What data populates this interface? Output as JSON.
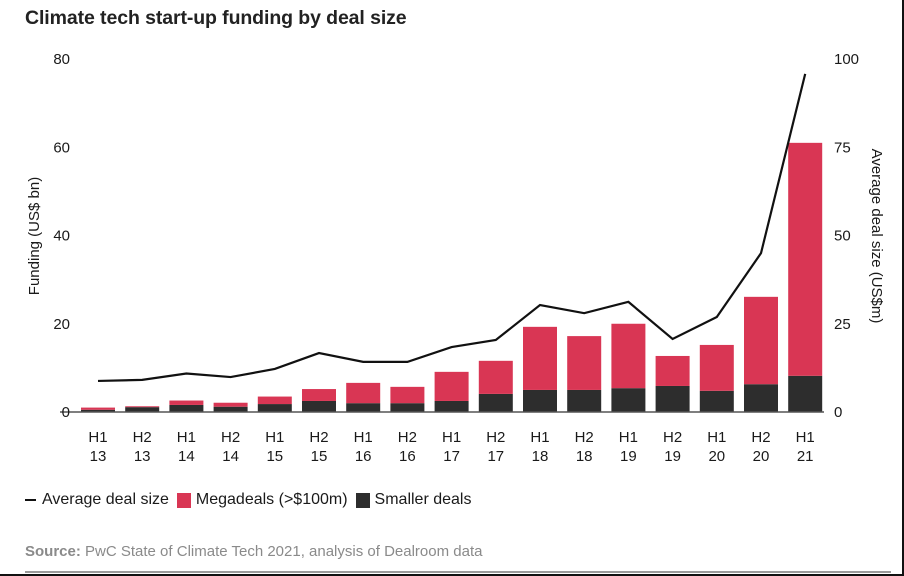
{
  "title": "Climate tech start-up funding by deal size",
  "chart_data": {
    "type": "bar",
    "stacked": true,
    "title": "Climate tech start-up funding by deal size",
    "categories": [
      "H1 13",
      "H2 13",
      "H1 14",
      "H2 14",
      "H1 15",
      "H2 15",
      "H1 16",
      "H2 16",
      "H1 17",
      "H2 17",
      "H1 18",
      "H2 18",
      "H1 19",
      "H2 19",
      "H1 20",
      "H2 20",
      "H1 21"
    ],
    "category_lines": [
      [
        "H1",
        "13"
      ],
      [
        "H2",
        "13"
      ],
      [
        "H1",
        "14"
      ],
      [
        "H2",
        "14"
      ],
      [
        "H1",
        "15"
      ],
      [
        "H2",
        "15"
      ],
      [
        "H1",
        "16"
      ],
      [
        "H2",
        "16"
      ],
      [
        "H1",
        "17"
      ],
      [
        "H2",
        "17"
      ],
      [
        "H1",
        "18"
      ],
      [
        "H2",
        "18"
      ],
      [
        "H1",
        "19"
      ],
      [
        "H2",
        "19"
      ],
      [
        "H1",
        "20"
      ],
      [
        "H2",
        "20"
      ],
      [
        "H1",
        "21"
      ]
    ],
    "series": [
      {
        "name": "Smaller deals",
        "type": "bar",
        "axis": "left",
        "color": "#2d2d2d",
        "values": [
          0.5,
          1.1,
          1.6,
          1.2,
          1.8,
          2.5,
          2.0,
          2.0,
          2.5,
          4.1,
          5.0,
          5.0,
          5.4,
          5.9,
          4.8,
          6.3,
          8.2
        ]
      },
      {
        "name": "Megadeals (>$100m)",
        "type": "bar",
        "axis": "left",
        "color": "#d93654",
        "values": [
          0.5,
          0.2,
          1.0,
          0.9,
          1.7,
          2.7,
          4.6,
          3.7,
          6.6,
          7.5,
          14.3,
          12.2,
          14.6,
          6.8,
          10.4,
          19.8,
          52.8
        ]
      },
      {
        "name": "Average deal size",
        "type": "line",
        "axis": "right",
        "color": "#111111",
        "values": [
          8.8,
          9.1,
          10.9,
          9.9,
          12.2,
          16.7,
          14.2,
          14.2,
          18.4,
          20.4,
          30.3,
          28.0,
          31.2,
          20.7,
          26.9,
          45.0,
          95.8
        ]
      }
    ],
    "ylabel": "Funding (US$ bn)",
    "ylim": [
      0,
      80
    ],
    "yticks": [
      0,
      20,
      40,
      60,
      80
    ],
    "y2label": "Average deal size (US$m)",
    "y2lim": [
      0,
      100
    ],
    "y2ticks": [
      0,
      25,
      50,
      75,
      100
    ],
    "grid": false,
    "legend_position": "bottom-left"
  },
  "legend": {
    "line_label": "Average deal size",
    "mega_label": "Megadeals (>$100m)",
    "small_label": "Smaller deals",
    "mega_color": "#d93654",
    "small_color": "#2d2d2d"
  },
  "source": {
    "prefix": "Source:",
    "text": " PwC State of Climate Tech 2021, analysis of Dealroom data"
  }
}
